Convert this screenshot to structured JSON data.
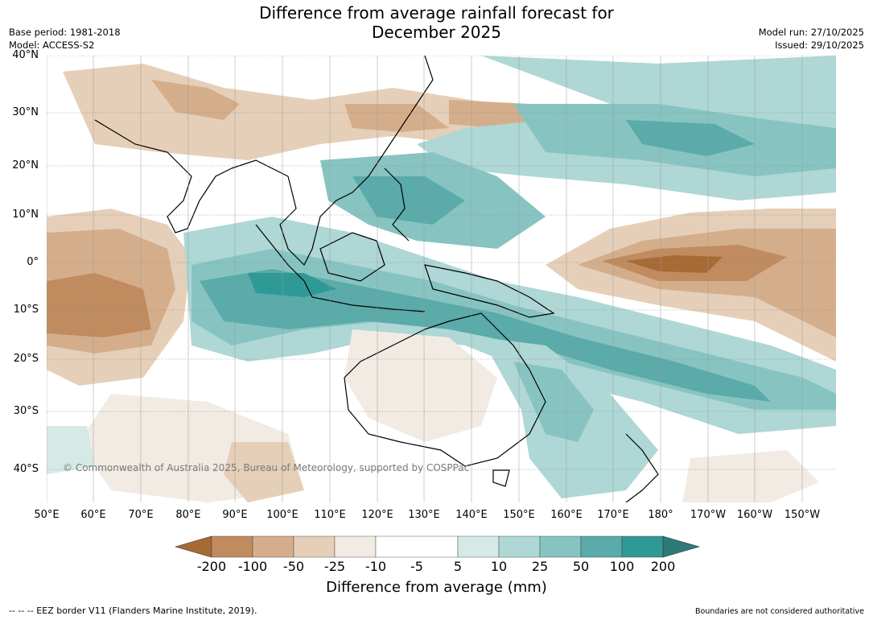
{
  "title_line1": "Difference from average rainfall forecast for",
  "title_line2": "December 2025",
  "meta_left": {
    "base_period": "Base period: 1981-2018",
    "model": "Model: ACCESS-S2"
  },
  "meta_right": {
    "model_run": "Model run: 27/10/2025",
    "issued": "Issued: 29/10/2025"
  },
  "lat_labels": [
    "40°N",
    "30°N",
    "20°N",
    "10°N",
    "0°",
    "10°S",
    "20°S",
    "30°S",
    "40°S"
  ],
  "lon_labels": [
    "50°E",
    "60°E",
    "70°E",
    "80°E",
    "90°E",
    "100°E",
    "110°E",
    "120°E",
    "130°E",
    "140°E",
    "150°E",
    "160°E",
    "170°E",
    "180°",
    "170°W",
    "160°W",
    "150°W"
  ],
  "legend": {
    "title": "Difference from average (mm)",
    "ticks": [
      "-200",
      "-100",
      "-50",
      "-25",
      "-10",
      "-5",
      "5",
      "10",
      "25",
      "50",
      "100",
      "200"
    ],
    "colors": [
      "#a86a35",
      "#c08b5e",
      "#d4ae8b",
      "#e6cfb8",
      "#f2ebe4",
      "#ffffff",
      "#d5e9e7",
      "#aed7d5",
      "#87c4c1",
      "#5aabaa",
      "#2f9996",
      "#2e7a79"
    ]
  },
  "copyright": "© Commonwealth of Australia 2025, Bureau of Meteorology, supported by COSPPac",
  "footer_left": "--  --  -- EEZ border V11 (Flanders Marine Institute, 2019).",
  "footer_right": "Boundaries are not considered authoritative"
}
